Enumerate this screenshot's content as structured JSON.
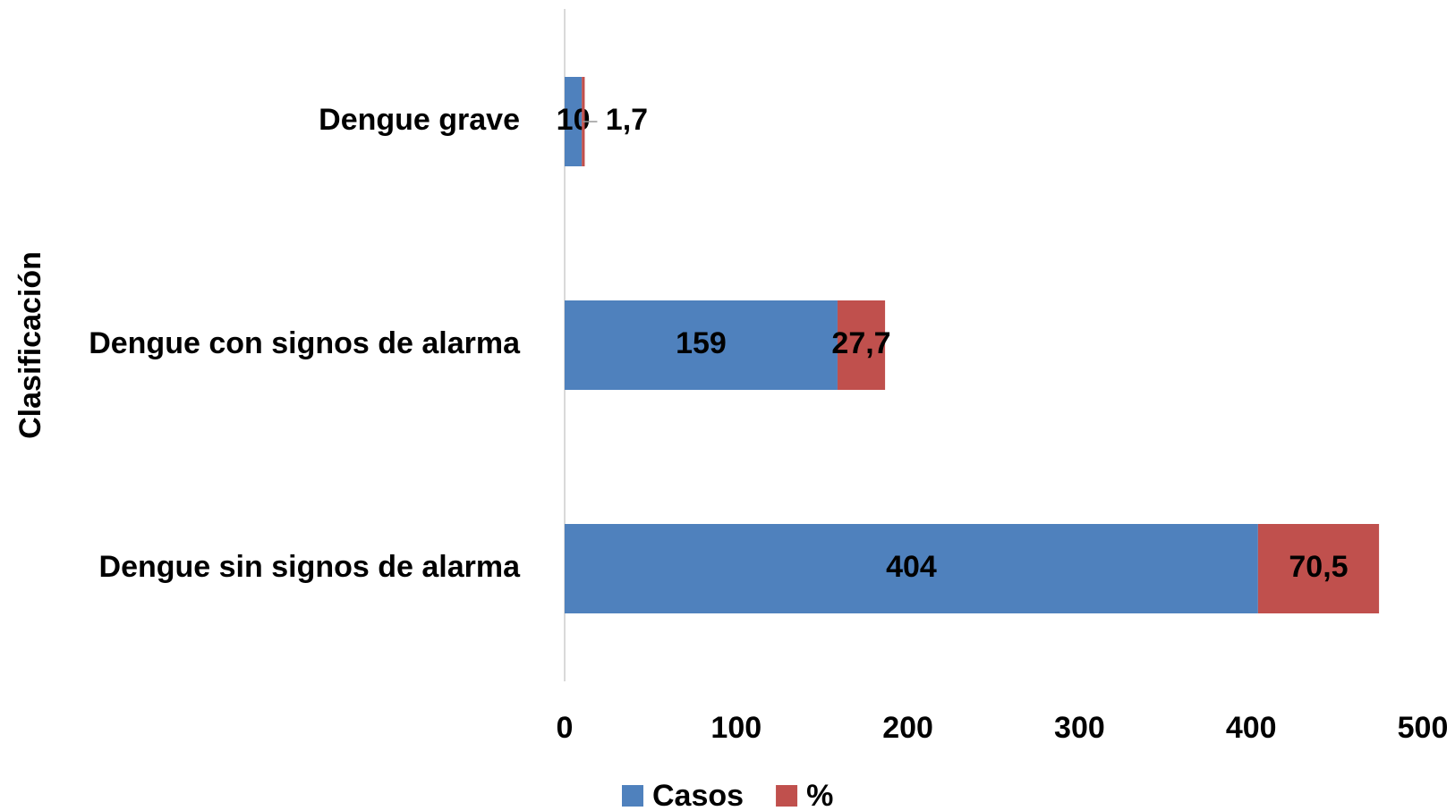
{
  "chart_data": {
    "type": "stacked_barh",
    "y_label": "Clasificación",
    "categories": [
      "Dengue grave",
      "Dengue con signos de alarma",
      "Dengue sin signos de alarma"
    ],
    "series": [
      {
        "name": "Casos",
        "color": "#4f81bd",
        "values": [
          10,
          159,
          404
        ]
      },
      {
        "name": "%",
        "color": "#c0504d",
        "values": [
          1.7,
          27.7,
          70.5
        ],
        "value_labels": [
          "1,7",
          "27,7",
          "70,5"
        ]
      }
    ],
    "xlim": [
      0,
      500
    ],
    "xticks": [
      0,
      100,
      200,
      300,
      400,
      500
    ],
    "legend": "bottom"
  }
}
